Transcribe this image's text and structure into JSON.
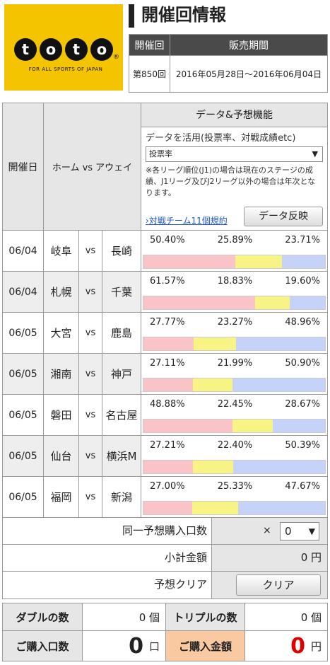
{
  "logo": {
    "letters": [
      "t",
      "o",
      "t",
      "o"
    ],
    "reg": "®",
    "tagline": "FOR ALL SPORTS OF JAPAN"
  },
  "title": "開催回情報",
  "info": {
    "col1_header": "開催回",
    "col2_header": "販売期間",
    "round": "第850回",
    "period": "2016年05月28日～2016年06月04日"
  },
  "table_header": {
    "date": "開催日",
    "match": "ホーム vs アウェイ",
    "feature_title": "データ&予想機能",
    "feature_sub": "データを活用(投票率、対戦成績etc)",
    "select_value": "投票率",
    "note": "※各リーグ順位(J1)の場合は現在のステージの成績、J1リーグ及びJ2リーグ以外の場合は年次となります。",
    "link": "対戦チーム11個規約",
    "reflect_button": "データ反映"
  },
  "matches": [
    {
      "date": "06/04",
      "home": "岐阜",
      "vs": "vs",
      "away": "長崎",
      "home_pct": "50.40%",
      "draw_pct": "25.89%",
      "away_pct": "23.71%",
      "h": 50.4,
      "dr": 25.89,
      "a": 23.71
    },
    {
      "date": "06/04",
      "home": "札幌",
      "vs": "vs",
      "away": "千葉",
      "home_pct": "61.57%",
      "draw_pct": "18.83%",
      "away_pct": "19.60%",
      "h": 61.57,
      "dr": 18.83,
      "a": 19.6
    },
    {
      "date": "06/05",
      "home": "大宮",
      "vs": "vs",
      "away": "鹿島",
      "home_pct": "27.77%",
      "draw_pct": "23.27%",
      "away_pct": "48.96%",
      "h": 27.77,
      "dr": 23.27,
      "a": 48.96
    },
    {
      "date": "06/05",
      "home": "湘南",
      "vs": "vs",
      "away": "神戸",
      "home_pct": "27.11%",
      "draw_pct": "21.99%",
      "away_pct": "50.90%",
      "h": 27.11,
      "dr": 21.99,
      "a": 50.9
    },
    {
      "date": "06/05",
      "home": "磐田",
      "vs": "vs",
      "away": "名古屋",
      "home_pct": "48.88%",
      "draw_pct": "22.45%",
      "away_pct": "28.67%",
      "h": 48.88,
      "dr": 22.45,
      "a": 28.67
    },
    {
      "date": "06/05",
      "home": "仙台",
      "vs": "vs",
      "away": "横浜M",
      "home_pct": "27.21%",
      "draw_pct": "22.40%",
      "away_pct": "50.39%",
      "h": 27.21,
      "dr": 22.4,
      "a": 50.39
    },
    {
      "date": "06/05",
      "home": "福岡",
      "vs": "vs",
      "away": "新潟",
      "home_pct": "27.00%",
      "draw_pct": "25.33%",
      "away_pct": "47.67%",
      "h": 27.0,
      "dr": 25.33,
      "a": 47.67
    }
  ],
  "footer": {
    "same_pred_label": "同一予想購入口数",
    "times": "×",
    "same_pred_value": "0",
    "subtotal_label": "小計金額",
    "subtotal_value": "0 円",
    "clear_label": "予想クリア",
    "clear_button": "クリア"
  },
  "summary": {
    "double_label": "ダブルの数",
    "double_value": "0 個",
    "triple_label": "トリプルの数",
    "triple_value": "0 個",
    "units_label": "ご購入口数",
    "units_value": "0",
    "units_unit": "口",
    "amount_label": "ご購入金額",
    "amount_value": "0",
    "amount_unit": "円"
  },
  "colors": {
    "home": "#f9c3c8",
    "draw": "#f7f384",
    "away": "#c4d3f7",
    "logo": "#f5c400",
    "amount": "#e00000"
  }
}
